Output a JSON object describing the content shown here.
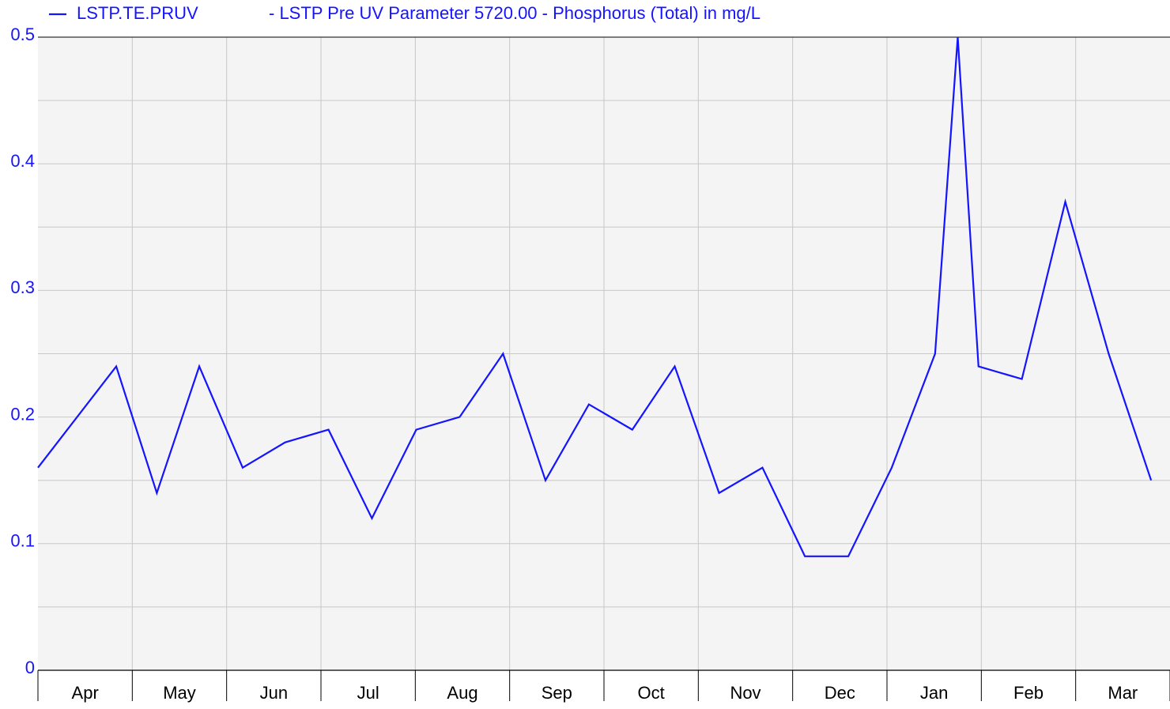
{
  "chart_data": {
    "type": "line",
    "description": "- LSTP Pre UV Parameter 5720.00 - Phosphorus (Total) in mg/L",
    "categories": [
      "Apr",
      "May",
      "Jun",
      "Jul",
      "Aug",
      "Sep",
      "Oct",
      "Nov",
      "Dec",
      "Jan",
      "Feb",
      "Mar"
    ],
    "xlim": [
      0,
      12
    ],
    "ylim": [
      0,
      0.5
    ],
    "yticks": [
      0,
      0.1,
      0.2,
      0.3,
      0.4,
      0.5
    ],
    "grid": true,
    "legend": "top",
    "series": [
      {
        "name": "LSTP.TE.PRUV",
        "color": "#1414ff",
        "x": [
          0,
          0.83,
          1.26,
          1.71,
          2.17,
          2.62,
          3.08,
          3.54,
          4.01,
          4.47,
          4.93,
          5.38,
          5.84,
          6.3,
          6.75,
          7.22,
          7.68,
          8.13,
          8.59,
          9.05,
          9.51,
          9.75,
          9.97,
          10.43,
          10.89,
          11.35,
          11.8
        ],
        "values": [
          0.16,
          0.24,
          0.14,
          0.24,
          0.16,
          0.18,
          0.19,
          0.12,
          0.19,
          0.2,
          0.25,
          0.15,
          0.21,
          0.19,
          0.24,
          0.14,
          0.16,
          0.09,
          0.09,
          0.16,
          0.25,
          0.5,
          0.24,
          0.23,
          0.37,
          0.25,
          0.15
        ]
      }
    ]
  }
}
